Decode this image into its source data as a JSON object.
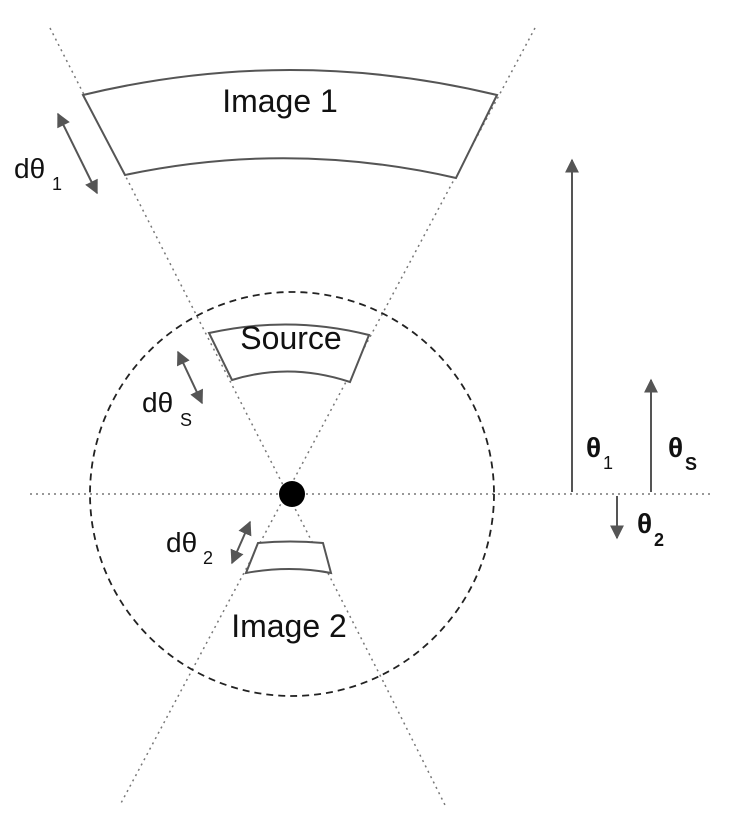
{
  "labels": {
    "image1": "Image 1",
    "source": "Source",
    "image2": "Image 2",
    "d_theta_1": "dθ",
    "d_theta_1_sub": "1",
    "d_theta_s": "dθ",
    "d_theta_s_sub": "S",
    "d_theta_2": "dθ",
    "d_theta_2_sub": "2",
    "theta_1": "θ",
    "theta_1_sub": "1",
    "theta_s": "θ",
    "theta_s_sub": "S",
    "theta_2": "θ",
    "theta_2_sub": "2"
  },
  "colors": {
    "line": "#555555",
    "dashed": "#222222",
    "lens": "#000000",
    "dotted": "#777777"
  }
}
